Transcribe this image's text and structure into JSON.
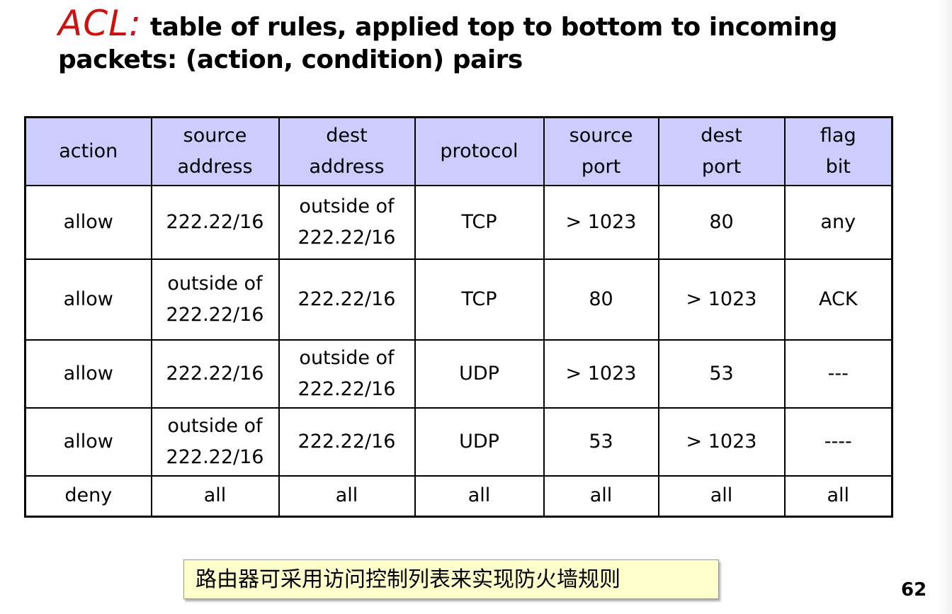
{
  "slide": {
    "title_highlight": "ACL:",
    "title_rest": " table of rules, applied top to bottom to incoming",
    "title_line2": "packets: (action, condition) pairs",
    "page_number": "62",
    "note": "路由器可采用访问控制列表来实现防火墙规则"
  },
  "table": {
    "headers": [
      [
        "action"
      ],
      [
        "source",
        "address"
      ],
      [
        "dest",
        "address"
      ],
      [
        "protocol"
      ],
      [
        "source",
        "port"
      ],
      [
        "dest",
        "port"
      ],
      [
        "flag",
        "bit"
      ]
    ],
    "rows": [
      [
        [
          "allow"
        ],
        [
          "222.22/16"
        ],
        [
          "outside of",
          "222.22/16"
        ],
        [
          "TCP"
        ],
        [
          "> 1023"
        ],
        [
          "80"
        ],
        [
          "any"
        ]
      ],
      [
        [
          "allow"
        ],
        [
          "outside of",
          "222.22/16"
        ],
        [
          "222.22/16"
        ],
        [
          "TCP"
        ],
        [
          "80"
        ],
        [
          "> 1023"
        ],
        [
          "ACK"
        ]
      ],
      [
        [
          "allow"
        ],
        [
          "222.22/16"
        ],
        [
          "outside of",
          "222.22/16"
        ],
        [
          "UDP"
        ],
        [
          "> 1023"
        ],
        [
          "53"
        ],
        [
          "---"
        ]
      ],
      [
        [
          "allow"
        ],
        [
          "outside of",
          "222.22/16"
        ],
        [
          "222.22/16"
        ],
        [
          "UDP"
        ],
        [
          "53"
        ],
        [
          "> 1023"
        ],
        [
          "----"
        ]
      ],
      [
        [
          "deny"
        ],
        [
          "all"
        ],
        [
          "all"
        ],
        [
          "all"
        ],
        [
          "all"
        ],
        [
          "all"
        ],
        [
          "all"
        ]
      ]
    ]
  }
}
